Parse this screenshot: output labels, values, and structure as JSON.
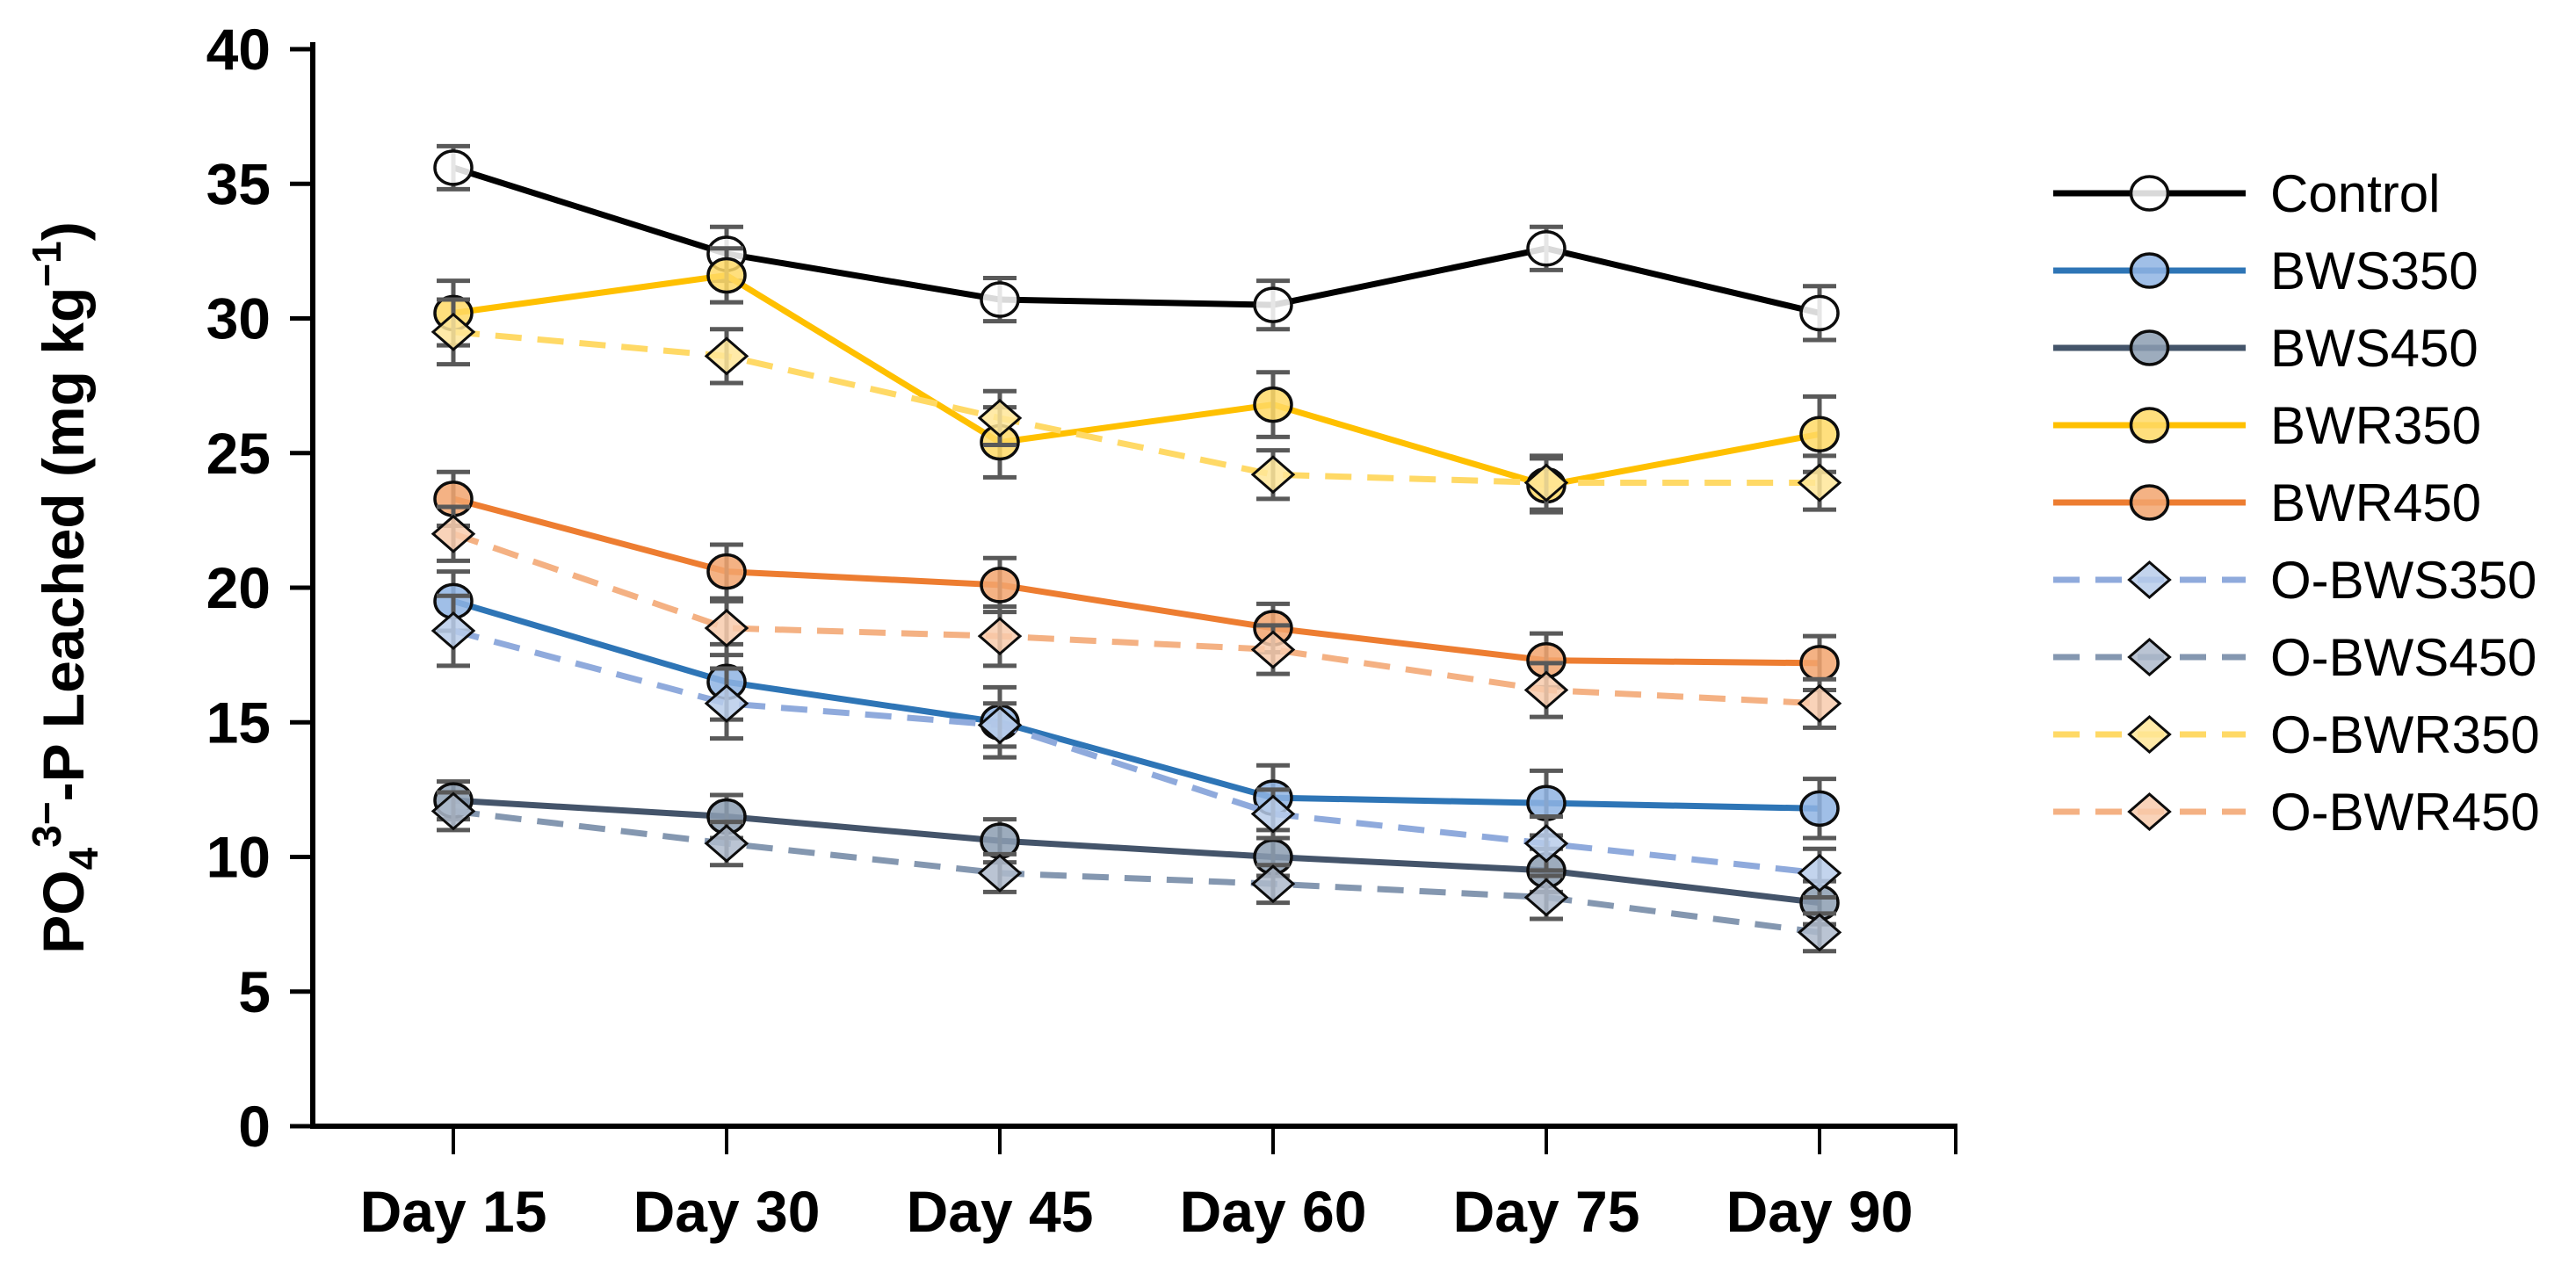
{
  "page": {
    "background": "#ffffff"
  },
  "chart_data": {
    "type": "line",
    "title": "",
    "xlabel": "",
    "ylabel": "PO43--P Leached (mg kg-1)",
    "ylabel_rich": [
      {
        "text": "PO",
        "style": "normal"
      },
      {
        "text": "4",
        "style": "sub"
      },
      {
        "text": "3−",
        "style": "sup"
      },
      {
        "text": "-P Leached (mg kg",
        "style": "normal"
      },
      {
        "text": "−1",
        "style": "sup"
      },
      {
        "text": ")",
        "style": "normal"
      }
    ],
    "categories": [
      "Day 15",
      "Day 30",
      "Day 45",
      "Day 60",
      "Day 75",
      "Day 90"
    ],
    "ylim": [
      0,
      40
    ],
    "yticks": [
      0,
      5,
      10,
      15,
      20,
      25,
      30,
      35,
      40
    ],
    "grid": false,
    "legend_position": "right",
    "error_bar_color": "#595959",
    "series": [
      {
        "name": "Control",
        "line_style": "solid",
        "marker": "circle",
        "line_color": "#000000",
        "marker_fill": "#FFFFFF",
        "values": [
          35.6,
          32.4,
          30.7,
          30.5,
          32.6,
          30.2
        ],
        "errors": [
          0.8,
          1.0,
          0.8,
          0.9,
          0.8,
          1.0
        ]
      },
      {
        "name": "BWS350",
        "line_style": "solid",
        "marker": "circle",
        "line_color": "#2E75B6",
        "marker_fill": "#8FB4E3",
        "values": [
          19.5,
          16.5,
          15.0,
          12.2,
          12.0,
          11.8
        ],
        "errors": [
          1.1,
          1.4,
          1.3,
          1.2,
          1.2,
          1.1
        ]
      },
      {
        "name": "BWS450",
        "line_style": "solid",
        "marker": "circle",
        "line_color": "#44546A",
        "marker_fill": "#8C9DB2",
        "values": [
          12.1,
          11.5,
          10.6,
          10.0,
          9.5,
          8.3
        ],
        "errors": [
          0.7,
          0.8,
          0.8,
          0.7,
          0.8,
          0.8
        ]
      },
      {
        "name": "BWR350",
        "line_style": "solid",
        "marker": "circle",
        "line_color": "#FFC000",
        "marker_fill": "#FFD966",
        "values": [
          30.2,
          31.6,
          25.4,
          26.8,
          23.8,
          25.7
        ],
        "errors": [
          1.2,
          1.0,
          1.3,
          1.2,
          1.0,
          1.4
        ]
      },
      {
        "name": "BWR450",
        "line_style": "solid",
        "marker": "circle",
        "line_color": "#ED7D31",
        "marker_fill": "#F2A56F",
        "values": [
          23.3,
          20.6,
          20.1,
          18.5,
          17.3,
          17.2
        ],
        "errors": [
          1.0,
          1.0,
          1.0,
          0.9,
          1.0,
          1.0
        ]
      },
      {
        "name": "O-BWS350",
        "line_style": "dashed",
        "marker": "diamond",
        "line_color": "#8FAADC",
        "marker_fill": "#B8CCEA",
        "values": [
          18.4,
          15.7,
          14.9,
          11.6,
          10.5,
          9.4
        ],
        "errors": [
          1.3,
          1.3,
          0.8,
          0.9,
          1.0,
          0.9
        ]
      },
      {
        "name": "O-BWS450",
        "line_style": "dashed",
        "marker": "diamond",
        "line_color": "#8497B0",
        "marker_fill": "#AEBACB",
        "values": [
          11.7,
          10.5,
          9.4,
          9.0,
          8.5,
          7.2
        ],
        "errors": [
          0.7,
          0.8,
          0.7,
          0.7,
          0.8,
          0.7
        ]
      },
      {
        "name": "O-BWR350",
        "line_style": "dashed",
        "marker": "diamond",
        "line_color": "#FFD966",
        "marker_fill": "#FFE699",
        "values": [
          29.5,
          28.6,
          26.3,
          24.2,
          23.9,
          23.9
        ],
        "errors": [
          1.2,
          1.0,
          1.0,
          0.9,
          1.0,
          1.0
        ]
      },
      {
        "name": "O-BWR450",
        "line_style": "dashed",
        "marker": "diamond",
        "line_color": "#F4B183",
        "marker_fill": "#F8CBAD",
        "values": [
          22.0,
          18.5,
          18.2,
          17.7,
          16.2,
          15.7
        ],
        "errors": [
          1.0,
          1.0,
          1.1,
          0.9,
          1.0,
          0.9
        ]
      }
    ]
  }
}
